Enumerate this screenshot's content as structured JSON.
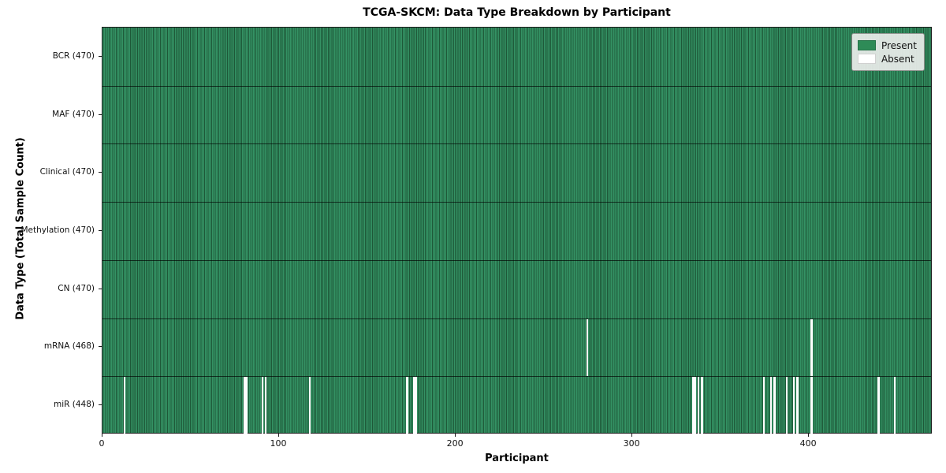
{
  "chart_data": {
    "type": "heatmap",
    "title": "TCGA-SKCM: Data Type Breakdown by Participant",
    "xlabel": "Participant",
    "ylabel": "Data Type (Total Sample Count)",
    "n_participants": 470,
    "x_ticks": [
      0,
      100,
      200,
      300,
      400
    ],
    "grid": false,
    "legend_position": "upper right",
    "legend": [
      {
        "label": "Present",
        "color": "#2e8b57"
      },
      {
        "label": "Absent",
        "color": "#ffffff"
      }
    ],
    "colors": {
      "present_fill": "#349264",
      "present_edge": "#1e5838",
      "absent_fill": "#fdfdfd",
      "row_separator": "rgba(0,0,0,0.65)"
    },
    "rows": [
      {
        "label": "BCR (470)",
        "data_type": "BCR",
        "total": 470,
        "absent_participants": []
      },
      {
        "label": "MAF (470)",
        "data_type": "MAF",
        "total": 470,
        "absent_participants": []
      },
      {
        "label": "Clinical (470)",
        "data_type": "Clinical",
        "total": 470,
        "absent_participants": []
      },
      {
        "label": "Methylation (470)",
        "data_type": "Methylation",
        "total": 470,
        "absent_participants": []
      },
      {
        "label": "CN (470)",
        "data_type": "CN",
        "total": 470,
        "absent_participants": []
      },
      {
        "label": "mRNA (468)",
        "data_type": "mRNA",
        "total": 468,
        "absent_participants": [
          274,
          401
        ]
      },
      {
        "label": "miR (448)",
        "data_type": "miR",
        "total": 448,
        "absent_participants": [
          12,
          80,
          81,
          90,
          92,
          117,
          172,
          176,
          177,
          334,
          335,
          337,
          339,
          374,
          378,
          380,
          387,
          391,
          393,
          401,
          439,
          448
        ]
      }
    ]
  }
}
